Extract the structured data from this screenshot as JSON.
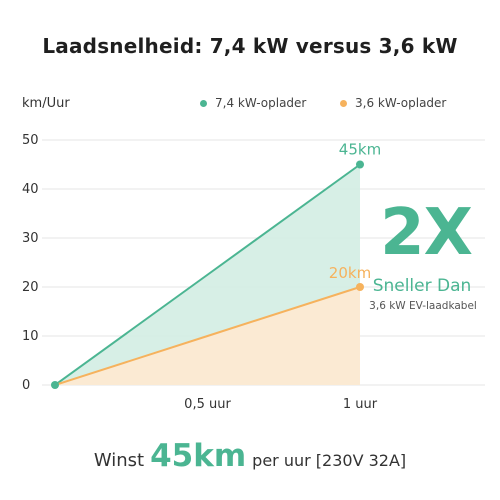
{
  "title": "Laadsnelheid: 7,4 kW versus 3,6 kW",
  "colors": {
    "green": "#4bb592",
    "green_fill": "#d3ede3",
    "orange": "#f6b25d",
    "orange_fill": "#fde9d2",
    "grid": "#e4e4e4"
  },
  "chart_data": {
    "type": "area",
    "ylabel": "km/Uur",
    "ylim": [
      0,
      50
    ],
    "yticks": [
      "0",
      "10",
      "20",
      "30",
      "40",
      "50"
    ],
    "xticks": [
      "0,5 uur",
      "1 uur"
    ],
    "x": [
      0,
      0.5,
      1
    ],
    "grid": true,
    "legend_position": "top",
    "series": [
      {
        "name": "7,4 kW-oplader",
        "values": [
          0,
          22.5,
          45
        ],
        "end_label": "45km",
        "color": "#4bb592"
      },
      {
        "name": "3,6 kW-oplader",
        "values": [
          0,
          10,
          20
        ],
        "end_label": "20km",
        "color": "#f6b25d"
      }
    ]
  },
  "callout": {
    "multiplier": "2X",
    "line1": "Sneller Dan",
    "line2": "3,6 kW EV-laadkabel"
  },
  "footer": {
    "prefix": "Winst",
    "highlight": "45km",
    "suffix": "per uur [230V 32A]"
  }
}
